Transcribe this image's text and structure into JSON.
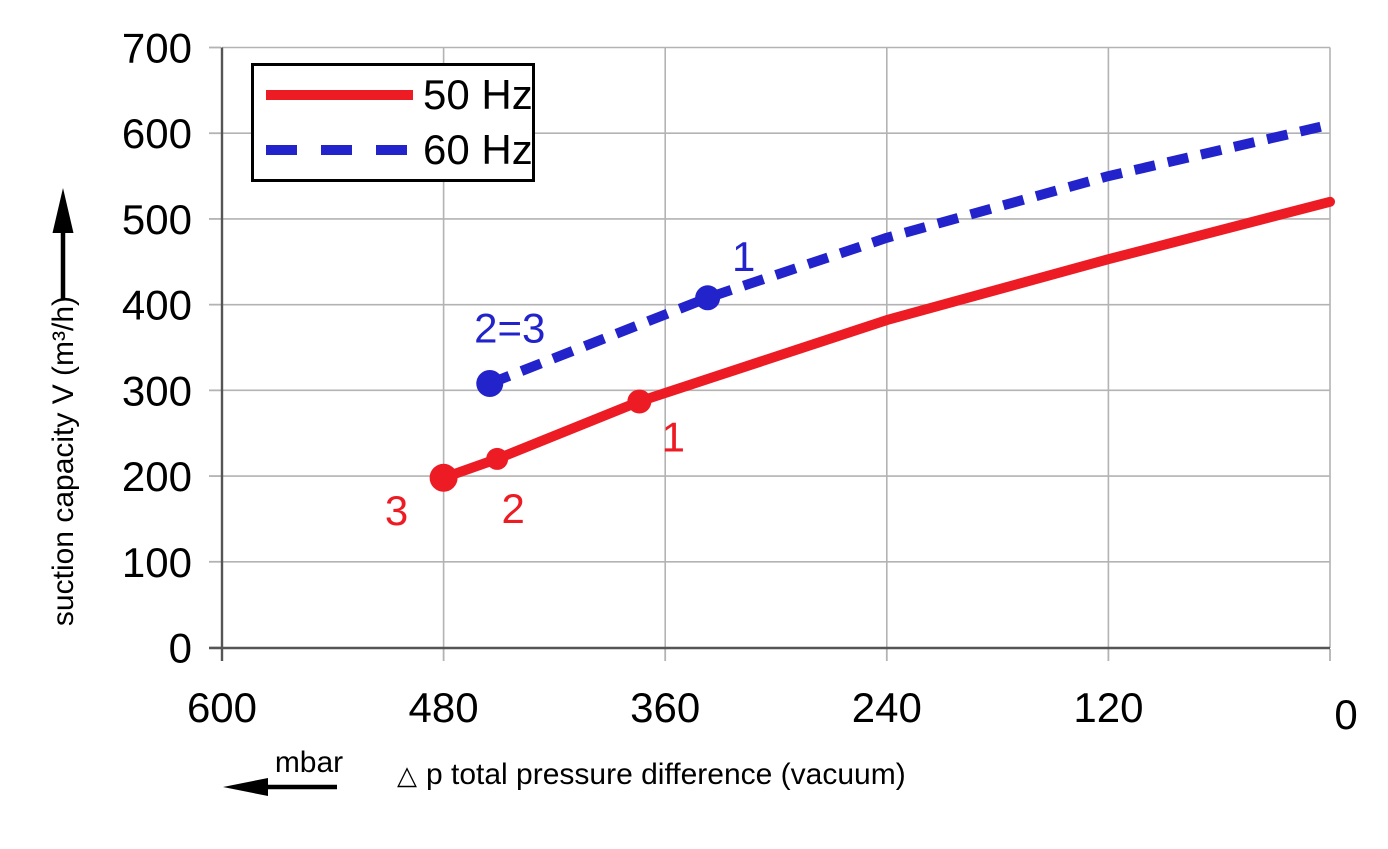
{
  "chart_data": {
    "type": "line",
    "title": "",
    "x_axis": {
      "label_symbol": "△",
      "label": "p total pressure difference (vacuum)",
      "unit": "mbar",
      "min": 0,
      "max": 600,
      "reversed": true,
      "ticks": [
        600,
        480,
        360,
        240,
        120,
        0
      ],
      "direction_arrow": "left"
    },
    "y_axis": {
      "label": "suction capacity V (m³/h)",
      "min": 0,
      "max": 700,
      "ticks": [
        700,
        600,
        500,
        400,
        300,
        200,
        100,
        0
      ],
      "direction_arrow": "up"
    },
    "grid": true,
    "legend": {
      "position": "top-left",
      "items": [
        {
          "label": "50 Hz",
          "color": "#ed1c24",
          "line_style": "solid"
        },
        {
          "label": "60 Hz",
          "color": "#2323cc",
          "line_style": "dashed"
        }
      ]
    },
    "series": [
      {
        "name": "50 Hz",
        "color": "#ed1c24",
        "line_style": "solid",
        "x": [
          480,
          451,
          374,
          240,
          120,
          0
        ],
        "y": [
          198,
          220,
          287,
          382,
          453,
          520
        ],
        "marked_points": [
          {
            "x": 480,
            "y": 198,
            "label": "3",
            "r": 14,
            "dx": -47,
            "dy": 47
          },
          {
            "x": 451,
            "y": 220,
            "label": "2",
            "r": 11,
            "dx": 16,
            "dy": 64
          },
          {
            "x": 374,
            "y": 287,
            "label": "1",
            "r": 12,
            "dx": 34,
            "dy": 50
          }
        ]
      },
      {
        "name": "60 Hz",
        "color": "#2323cc",
        "line_style": "dashed",
        "x": [
          455,
          337,
          240,
          120,
          0
        ],
        "y": [
          308,
          408,
          478,
          550,
          610
        ],
        "marked_points": [
          {
            "x": 455,
            "y": 308,
            "label": "2=3",
            "r": 13.5,
            "dx": 20,
            "dy": -41
          },
          {
            "x": 337,
            "y": 408,
            "label": "1",
            "r": 12.5,
            "dx": 36,
            "dy": -27
          }
        ]
      }
    ]
  },
  "colors": {
    "grid": "#b3b3b3",
    "axis": "#555555",
    "text": "#000000",
    "series1": "#ed1c24",
    "series2": "#2323cc"
  }
}
